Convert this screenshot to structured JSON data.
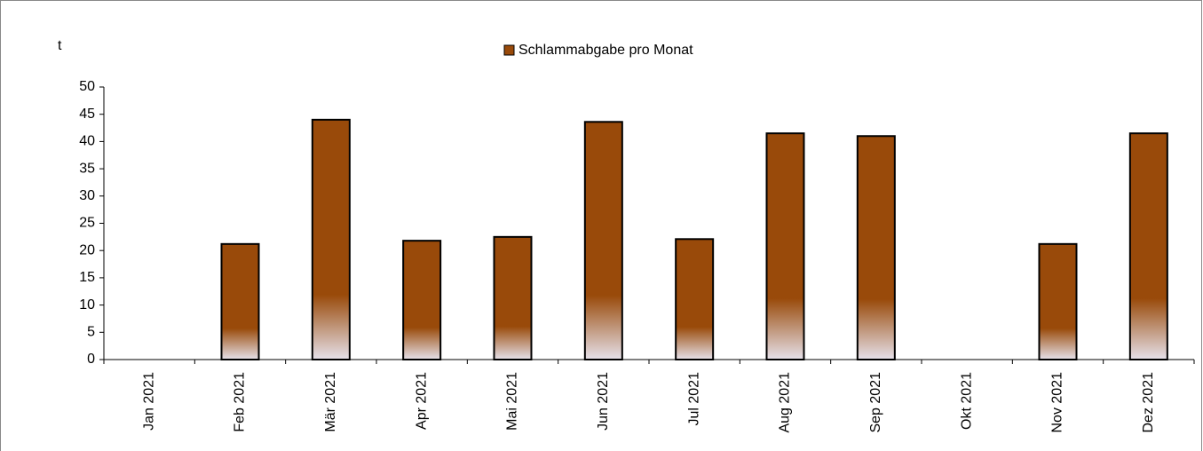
{
  "chart_data": {
    "type": "bar",
    "y_label": "t",
    "categories": [
      "Jan 2021",
      "Feb 2021",
      "Mär 2021",
      "Apr 2021",
      "Mai 2021",
      "Jun 2021",
      "Jul 2021",
      "Aug 2021",
      "Sep 2021",
      "Okt 2021",
      "Nov 2021",
      "Dez 2021"
    ],
    "series": [
      {
        "name": "Schlammabgabe pro Monat",
        "color": "#994a0a",
        "values": [
          0,
          21.2,
          44,
          21.8,
          22.5,
          43.6,
          22.1,
          41.5,
          41,
          0,
          21.2,
          41.5
        ]
      }
    ],
    "ylim": [
      0,
      50
    ],
    "yticks": [
      0,
      5,
      10,
      15,
      20,
      25,
      30,
      35,
      40,
      45,
      50
    ],
    "legend": "top"
  }
}
